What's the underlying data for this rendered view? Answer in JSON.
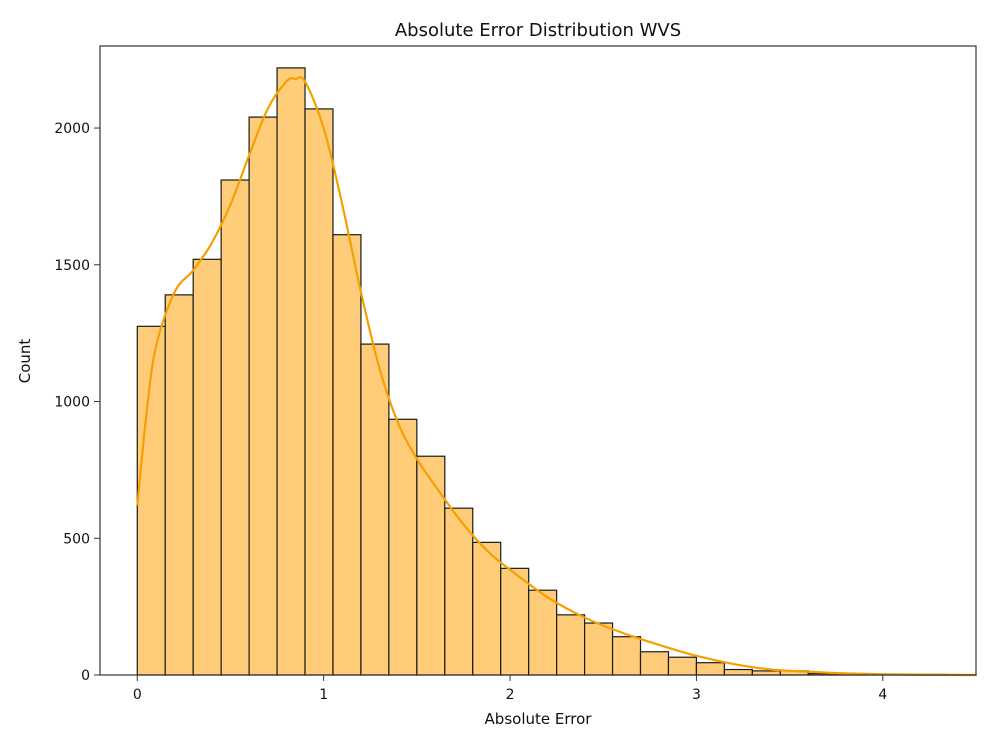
{
  "chart_data": {
    "type": "bar",
    "title": "Absolute Error Distribution WVS",
    "xlabel": "Absolute Error",
    "ylabel": "Count",
    "xlim": [
      -0.2,
      4.5
    ],
    "ylim": [
      0,
      2300
    ],
    "xticks": [
      0,
      1,
      2,
      3,
      4
    ],
    "yticks": [
      0,
      500,
      1000,
      1500,
      2000
    ],
    "grid": false,
    "bin_width": 0.15,
    "bins_start": [
      0,
      0.15,
      0.3,
      0.45,
      0.6,
      0.75,
      0.9,
      1.05,
      1.2,
      1.35,
      1.5,
      1.65,
      1.8,
      1.95,
      2.1,
      2.25,
      2.4,
      2.55,
      2.7,
      2.85,
      3.0,
      3.15,
      3.3,
      3.45,
      3.6,
      3.75,
      3.9,
      4.05,
      4.2,
      4.35
    ],
    "counts": [
      1275,
      1390,
      1520,
      1810,
      2040,
      2220,
      2070,
      1610,
      1210,
      935,
      800,
      610,
      485,
      390,
      310,
      220,
      190,
      140,
      85,
      65,
      45,
      20,
      15,
      15,
      5,
      5,
      3,
      2,
      2,
      1
    ],
    "kde": {
      "x": [
        0,
        0.05,
        0.1,
        0.2,
        0.3,
        0.4,
        0.5,
        0.6,
        0.7,
        0.8,
        0.85,
        0.9,
        1.0,
        1.1,
        1.2,
        1.3,
        1.4,
        1.5,
        1.6,
        1.7,
        1.8,
        1.9,
        2.0,
        2.2,
        2.4,
        2.6,
        2.8,
        3.0,
        3.2,
        3.4,
        3.6,
        3.8,
        4.0,
        4.2,
        4.5
      ],
      "y": [
        620,
        960,
        1200,
        1400,
        1480,
        1580,
        1720,
        1900,
        2070,
        2170,
        2180,
        2170,
        2000,
        1720,
        1400,
        1120,
        920,
        790,
        690,
        595,
        510,
        440,
        385,
        285,
        210,
        155,
        110,
        70,
        40,
        20,
        12,
        6,
        3,
        1,
        0
      ]
    },
    "colors": {
      "bar_fill": "#ffcd7a",
      "bar_edge": "#1a1a1a",
      "kde_line": "#f5a000",
      "axes": "#333333"
    }
  }
}
